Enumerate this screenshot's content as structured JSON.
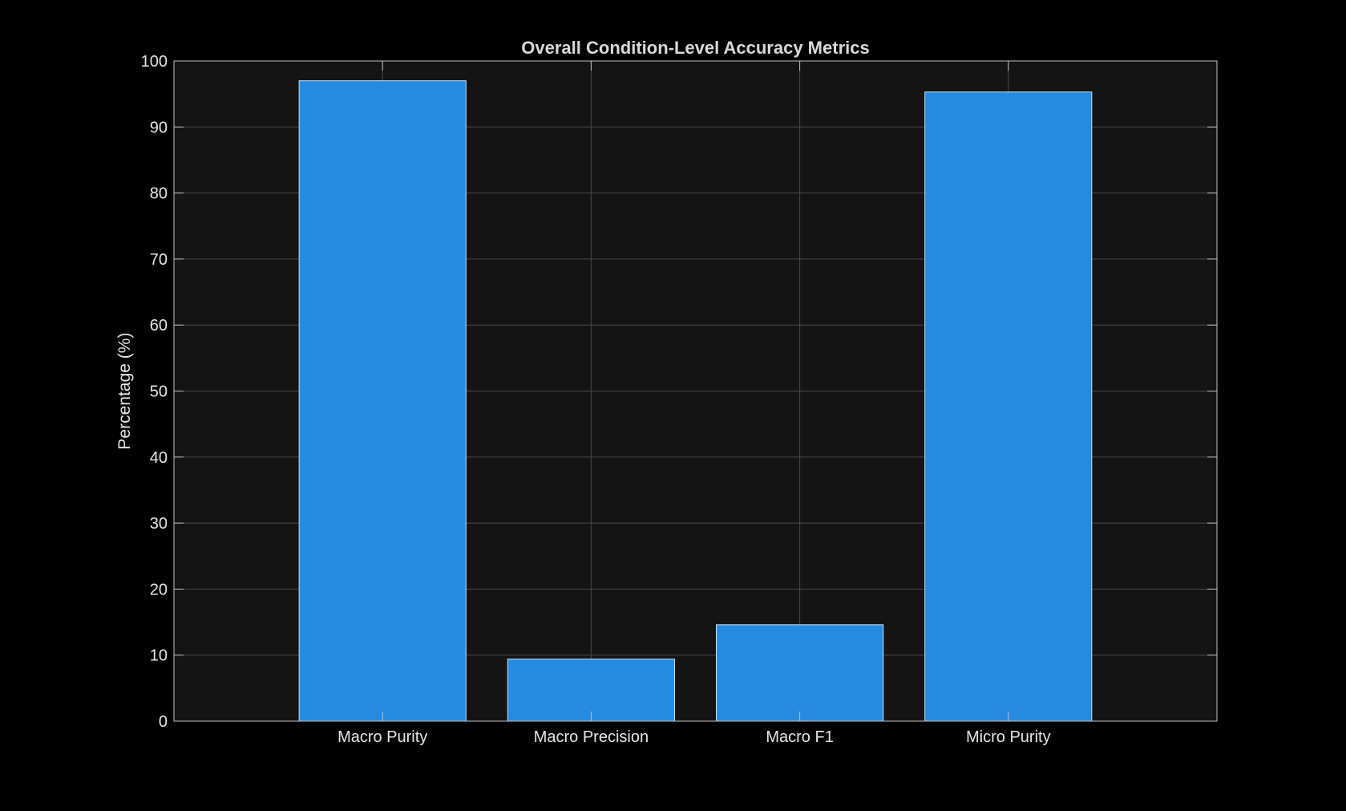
{
  "chart_data": {
    "type": "bar",
    "title": "Overall Condition-Level Accuracy Metrics",
    "xlabel": "",
    "ylabel": "Percentage (%)",
    "categories": [
      "Macro Purity",
      "Macro Precision",
      "Macro F1",
      "Micro Purity"
    ],
    "values": [
      97.0,
      9.4,
      14.6,
      95.3
    ],
    "ylim": [
      0,
      100
    ],
    "yticks": [
      0,
      10,
      20,
      30,
      40,
      50,
      60,
      70,
      80,
      90,
      100
    ],
    "grid": true,
    "legend": "none"
  },
  "colors": {
    "figure_background": "#000000",
    "axes_background": "#141414",
    "bar_fill": "#268be0",
    "bar_edge": "#cfe3f5",
    "grid": "#4a4a4a",
    "axes_box": "#bfbfbf",
    "text": "#e6e6e6"
  }
}
